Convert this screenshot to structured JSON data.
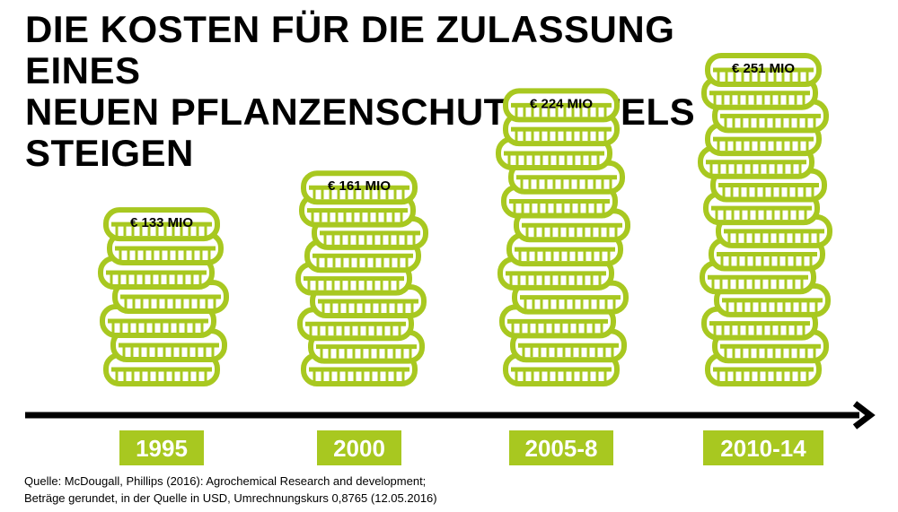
{
  "title_lines": [
    "DIE KOSTEN FÜR DIE ZULASSUNG EINES",
    "NEUEN PFLANZENSCHUTZMITTELS",
    "STEIGEN"
  ],
  "source_lines": [
    "Quelle: McDougall, Phillips (2016): Agrochemical Research and development;",
    "Beträge gerundet, in der Quelle in USD, Umrechnungskurs 0,8765 (12.05.2016)"
  ],
  "colors": {
    "accent": "#a8c820",
    "text": "#000000",
    "label_text": "#ffffff"
  },
  "icons": {
    "stack": "coin-stack-icon",
    "axis": "arrow-right-icon"
  },
  "chart_data": {
    "type": "bar",
    "categories": [
      "1995",
      "2000",
      "2005-8",
      "2010-14"
    ],
    "values": [
      133,
      161,
      224,
      251
    ],
    "value_labels": [
      "€ 133 MIO",
      "€ 161 MIO",
      "€ 224 MIO",
      "€ 251 MIO"
    ],
    "title": "DIE KOSTEN FÜR DIE ZULASSUNG EINES NEUEN PFLANZENSCHUTZMITTELS STEIGEN",
    "xlabel": "",
    "ylabel": "",
    "grid": false,
    "legend": "none"
  }
}
